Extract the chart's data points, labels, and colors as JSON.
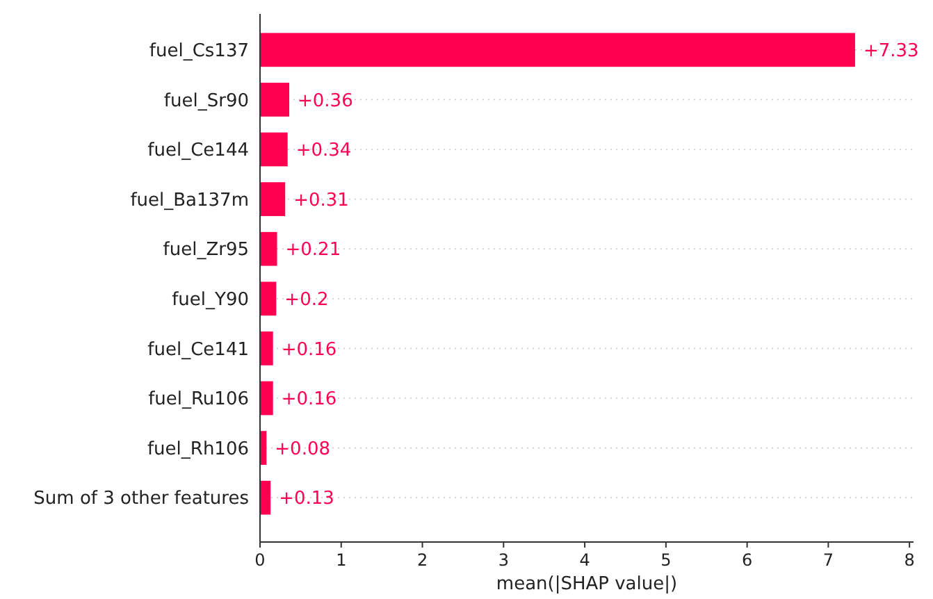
{
  "chart_data": {
    "type": "bar",
    "orientation": "horizontal",
    "xlabel": "mean(|SHAP value|)",
    "categories": [
      "fuel_Cs137",
      "fuel_Sr90",
      "fuel_Ce144",
      "fuel_Ba137m",
      "fuel_Zr95",
      "fuel_Y90",
      "fuel_Ce141",
      "fuel_Ru106",
      "fuel_Rh106",
      "Sum of 3 other features"
    ],
    "values": [
      7.33,
      0.36,
      0.34,
      0.31,
      0.21,
      0.2,
      0.16,
      0.16,
      0.08,
      0.13
    ],
    "value_labels": [
      "+7.33",
      "+0.36",
      "+0.34",
      "+0.31",
      "+0.21",
      "+0.2",
      "+0.16",
      "+0.16",
      "+0.08",
      "+0.13"
    ],
    "color": "#ff0051",
    "xlim": [
      0,
      8.05
    ],
    "xticks": [
      0,
      1,
      2,
      3,
      4,
      5,
      6,
      7,
      8
    ],
    "grid": "y"
  }
}
